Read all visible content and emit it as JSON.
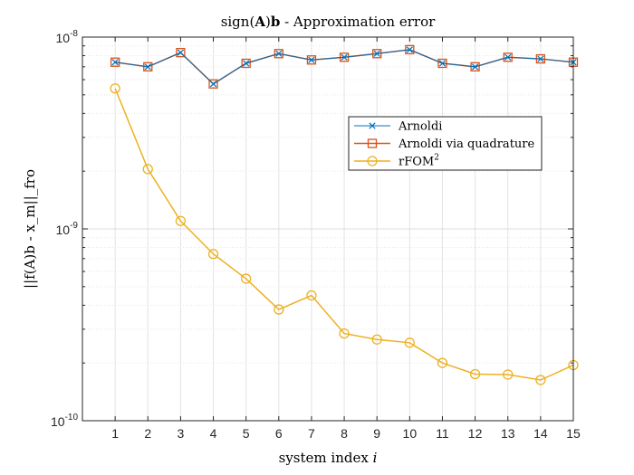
{
  "chart_data": {
    "type": "line",
    "title": "sign(A)b - Approximation error",
    "title_parts": [
      "sign(",
      "A",
      ")",
      "b",
      " - Approximation error"
    ],
    "xlabel_text": "system index ",
    "xlabel_var": "i",
    "ylabel": "||f(A)b - x_m||_fro",
    "x_scale": "linear",
    "y_scale": "log",
    "xlim": [
      0,
      15
    ],
    "ylim": [
      1e-10,
      1e-08
    ],
    "x": [
      1,
      2,
      3,
      4,
      5,
      6,
      7,
      8,
      9,
      10,
      11,
      12,
      13,
      14,
      15
    ],
    "x_ticks": [
      "1",
      "2",
      "3",
      "4",
      "5",
      "6",
      "7",
      "8",
      "9",
      "10",
      "11",
      "12",
      "13",
      "14",
      "15"
    ],
    "y_ticks": [
      {
        "value": 1e-10,
        "base": "10",
        "exp": "-10"
      },
      {
        "value": 1e-09,
        "base": "10",
        "exp": "-9"
      },
      {
        "value": 1e-08,
        "base": "10",
        "exp": "-8"
      }
    ],
    "grid": true,
    "legend_position": "upper-right",
    "series": [
      {
        "name": "Arnoldi",
        "color": "#0072BD",
        "marker": "x",
        "values": [
          7.4e-09,
          7e-09,
          8.3e-09,
          5.7e-09,
          7.3e-09,
          8.2e-09,
          7.6e-09,
          7.85e-09,
          8.2e-09,
          8.6e-09,
          7.3e-09,
          7e-09,
          7.85e-09,
          7.7e-09,
          7.4e-09
        ]
      },
      {
        "name": "Arnoldi via quadrature",
        "color": "#D95319",
        "marker": "square",
        "values": [
          7.4e-09,
          7e-09,
          8.3e-09,
          5.7e-09,
          7.3e-09,
          8.2e-09,
          7.6e-09,
          7.85e-09,
          8.2e-09,
          8.6e-09,
          7.3e-09,
          7e-09,
          7.85e-09,
          7.7e-09,
          7.4e-09
        ]
      },
      {
        "name": "rFOM",
        "name_sup": "2",
        "color": "#EDB120",
        "marker": "circle",
        "values": [
          5.4e-09,
          2.05e-09,
          1.1e-09,
          7.4e-10,
          5.5e-10,
          3.8e-10,
          4.5e-10,
          2.85e-10,
          2.65e-10,
          2.55e-10,
          2e-10,
          1.75e-10,
          1.74e-10,
          1.63e-10,
          1.95e-10
        ]
      }
    ]
  }
}
